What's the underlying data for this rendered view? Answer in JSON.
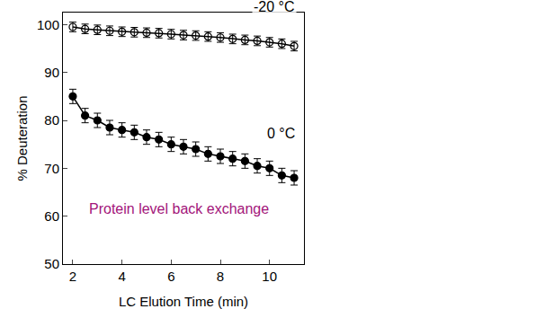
{
  "chart_data": {
    "type": "scatter",
    "x_label": "LC Elution Time (min)",
    "y_label": "% Deuteration",
    "xlim": [
      1.6,
      11.4
    ],
    "xticks": [
      2,
      4,
      6,
      8,
      10
    ],
    "ylim": [
      50,
      102.5
    ],
    "yticks": [
      50,
      60,
      70,
      80,
      90,
      100
    ],
    "grid": false,
    "series": [
      {
        "name": "-20 °C",
        "color": "#000000",
        "marker": "circle-open",
        "line_style": "solid",
        "x": [
          2,
          2.5,
          3,
          3.5,
          4,
          4.5,
          5,
          5.5,
          6,
          6.5,
          7,
          7.5,
          8,
          8.5,
          9,
          9.5,
          10,
          10.5,
          11
        ],
        "values": [
          99.5,
          99.1,
          98.9,
          98.7,
          98.5,
          98.4,
          98.3,
          98.2,
          98.0,
          97.8,
          97.7,
          97.5,
          97.3,
          97.0,
          96.8,
          96.6,
          96.3,
          96.0,
          95.5
        ],
        "error": [
          1,
          1,
          1,
          1,
          1,
          1,
          1,
          1,
          1,
          1,
          1,
          1,
          1,
          1,
          1,
          1,
          1,
          1,
          1
        ]
      },
      {
        "name": "0 °C",
        "color": "#000000",
        "marker": "circle",
        "line_style": "solid",
        "x": [
          2,
          2.5,
          3,
          3.5,
          4,
          4.5,
          5,
          5.5,
          6,
          6.5,
          7,
          7.5,
          8,
          8.5,
          9,
          9.5,
          10,
          10.5,
          11
        ],
        "values": [
          85,
          81,
          80,
          78.5,
          78,
          77.5,
          76.5,
          76,
          75,
          74.5,
          74,
          73,
          72.5,
          72,
          71.5,
          70.5,
          70,
          68.5,
          68
        ],
        "error": [
          1.5,
          1.5,
          1.5,
          1.5,
          1.5,
          1.5,
          1.5,
          1.5,
          1.5,
          1.5,
          1.5,
          1.5,
          1.5,
          1.5,
          1.5,
          1.5,
          1.5,
          1.5,
          1.5
        ]
      }
    ],
    "annotations": [
      {
        "text": "-20 °C"
      },
      {
        "text": "0 °C"
      },
      {
        "text": "Protein level back exchange"
      }
    ]
  }
}
